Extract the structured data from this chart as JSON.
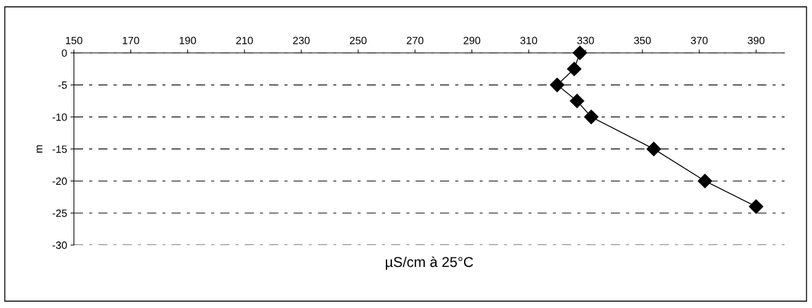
{
  "chart_data": {
    "type": "line",
    "xlabel": "µS/cm à 25°C",
    "ylabel": "m",
    "series": [
      {
        "color": "#000000",
        "x": [
          328,
          326,
          320,
          327,
          332,
          354,
          372,
          390
        ],
        "values": [
          0,
          -2.5,
          -5,
          -7.5,
          -10,
          -15,
          -20,
          -24
        ]
      }
    ],
    "xlim": [
      150,
      400
    ],
    "xticks": [
      150,
      170,
      190,
      210,
      230,
      250,
      270,
      290,
      310,
      330,
      350,
      370,
      390
    ],
    "ylim": [
      -30,
      0
    ],
    "yticks": [
      0,
      -5,
      -10,
      -15,
      -20,
      -25,
      -30
    ],
    "grid": "y",
    "marker": "diamond",
    "line_style": "solid",
    "legend": false
  }
}
